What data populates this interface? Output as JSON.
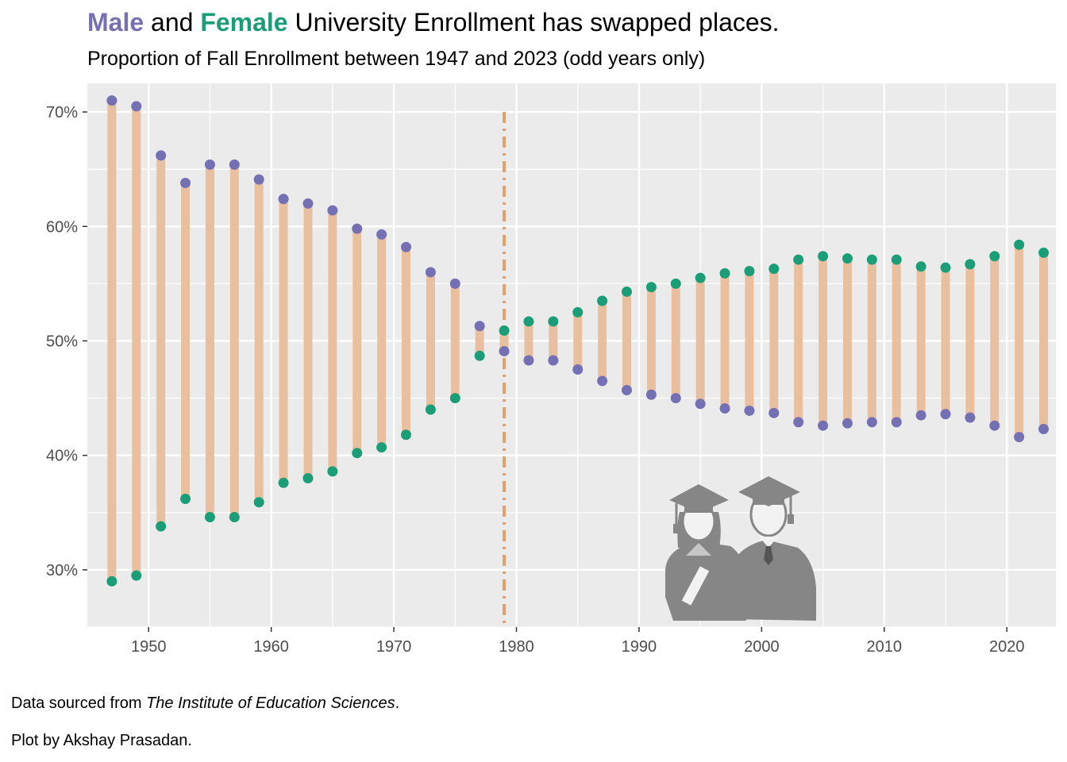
{
  "title": {
    "male_word": "Male",
    "and_word": "and",
    "female_word": "Female",
    "rest": "University Enrollment has swapped places."
  },
  "subtitle": "Proportion of Fall Enrollment between 1947 and 2023 (odd years only)",
  "caption": {
    "source_prefix": "Data sourced from ",
    "source_name": "The Institute of Education Sciences",
    "source_suffix": ".",
    "author": "Plot by Akshay Prasadan."
  },
  "colors": {
    "male": "#7570b3",
    "female": "#1b9e77",
    "segment": "#e8c0a0",
    "vline": "#e0a070",
    "panel": "#ebebeb",
    "grid": "#ffffff"
  },
  "illustration": "graduates-icon",
  "chart_data": {
    "type": "dumbbell",
    "xlim": [
      1945,
      2024
    ],
    "ylim": [
      25,
      72.5
    ],
    "x_ticks": [
      1950,
      1960,
      1970,
      1980,
      1990,
      2000,
      2010,
      2020
    ],
    "y_ticks": [
      30,
      40,
      50,
      60,
      70
    ],
    "y_tick_labels": [
      "30%",
      "40%",
      "50%",
      "60%",
      "70%"
    ],
    "reference_line": {
      "x": 1979,
      "y_range": [
        25,
        70
      ],
      "style": "dot-dash"
    },
    "x": [
      1947,
      1949,
      1951,
      1953,
      1955,
      1957,
      1959,
      1961,
      1963,
      1965,
      1967,
      1969,
      1971,
      1973,
      1975,
      1977,
      1979,
      1981,
      1983,
      1985,
      1987,
      1989,
      1991,
      1993,
      1995,
      1997,
      1999,
      2001,
      2003,
      2005,
      2007,
      2009,
      2011,
      2013,
      2015,
      2017,
      2019,
      2021,
      2023
    ],
    "series": [
      {
        "name": "Male",
        "values": [
          71.0,
          70.5,
          66.2,
          63.8,
          65.4,
          65.4,
          64.1,
          62.4,
          62.0,
          61.4,
          59.8,
          59.3,
          58.2,
          56.0,
          55.0,
          51.3,
          49.1,
          48.3,
          48.3,
          47.5,
          46.5,
          45.7,
          45.3,
          45.0,
          44.5,
          44.1,
          43.9,
          43.7,
          42.9,
          42.6,
          42.8,
          42.9,
          42.9,
          43.5,
          43.6,
          43.3,
          42.6,
          41.6,
          42.3
        ]
      },
      {
        "name": "Female",
        "values": [
          29.0,
          29.5,
          33.8,
          36.2,
          34.6,
          34.6,
          35.9,
          37.6,
          38.0,
          38.6,
          40.2,
          40.7,
          41.8,
          44.0,
          45.0,
          48.7,
          50.9,
          51.7,
          51.7,
          52.5,
          53.5,
          54.3,
          54.7,
          55.0,
          55.5,
          55.9,
          56.1,
          56.3,
          57.1,
          57.4,
          57.2,
          57.1,
          57.1,
          56.5,
          56.4,
          56.7,
          57.4,
          58.4,
          57.7
        ]
      }
    ]
  }
}
